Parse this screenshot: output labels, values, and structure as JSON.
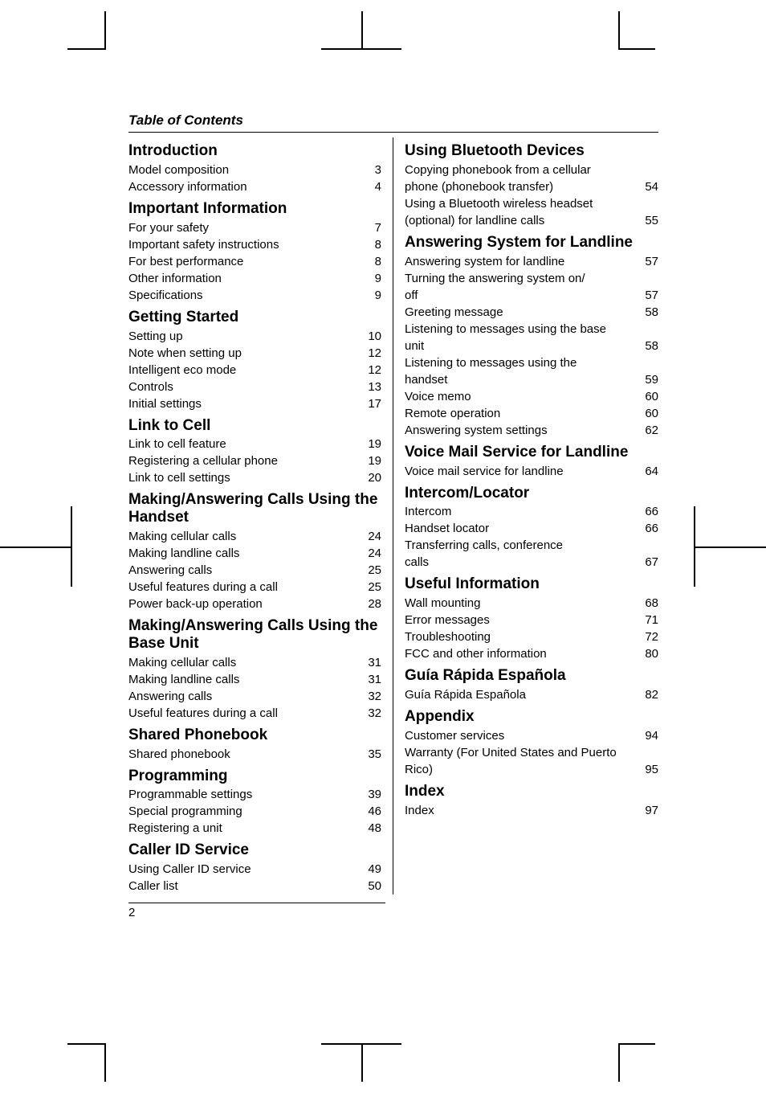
{
  "meta": {
    "title": "Table of Contents",
    "page_number": "2",
    "font_family": "Arial",
    "title_fontsize": 17,
    "section_fontsize": 19,
    "entry_fontsize": 15,
    "text_color": "#000000",
    "background_color": "#ffffff",
    "rule_color": "#000000"
  },
  "left": [
    {
      "type": "section",
      "text": "Introduction"
    },
    {
      "type": "entry",
      "label": "Model composition",
      "page": "3"
    },
    {
      "type": "entry",
      "label": "Accessory information",
      "page": "4"
    },
    {
      "type": "section",
      "text": "Important Information"
    },
    {
      "type": "entry",
      "label": "For your safety",
      "page": "7"
    },
    {
      "type": "entry",
      "label": "Important safety instructions",
      "page": "8"
    },
    {
      "type": "entry",
      "label": "For best performance",
      "page": "8"
    },
    {
      "type": "entry",
      "label": "Other information",
      "page": "9"
    },
    {
      "type": "entry",
      "label": "Specifications",
      "page": "9"
    },
    {
      "type": "section",
      "text": "Getting Started"
    },
    {
      "type": "entry",
      "label": "Setting up",
      "page": "10"
    },
    {
      "type": "entry",
      "label": "Note when setting up",
      "page": "12"
    },
    {
      "type": "entry",
      "label": "Intelligent eco mode",
      "page": "12"
    },
    {
      "type": "entry",
      "label": "Controls",
      "page": "13"
    },
    {
      "type": "entry",
      "label": "Initial settings",
      "page": "17"
    },
    {
      "type": "section",
      "text": "Link to Cell"
    },
    {
      "type": "entry",
      "label": "Link to cell feature",
      "page": "19"
    },
    {
      "type": "entry",
      "label": "Registering a cellular phone",
      "page": "19"
    },
    {
      "type": "entry",
      "label": "Link to cell settings",
      "page": "20"
    },
    {
      "type": "section",
      "text": "Making/Answering Calls Using the Handset"
    },
    {
      "type": "entry",
      "label": "Making cellular calls",
      "page": "24"
    },
    {
      "type": "entry",
      "label": "Making landline calls",
      "page": "24"
    },
    {
      "type": "entry",
      "label": "Answering calls",
      "page": "25"
    },
    {
      "type": "entry",
      "label": "Useful features during a call",
      "page": "25"
    },
    {
      "type": "entry",
      "label": "Power back-up operation",
      "page": "28"
    },
    {
      "type": "section",
      "text": "Making/Answering Calls Using the Base Unit"
    },
    {
      "type": "entry",
      "label": "Making cellular calls",
      "page": "31"
    },
    {
      "type": "entry",
      "label": "Making landline calls",
      "page": "31"
    },
    {
      "type": "entry",
      "label": "Answering calls",
      "page": "32"
    },
    {
      "type": "entry",
      "label": "Useful features during a call",
      "page": "32"
    },
    {
      "type": "section",
      "text": "Shared Phonebook"
    },
    {
      "type": "entry",
      "label": "Shared phonebook",
      "page": "35"
    },
    {
      "type": "section",
      "text": "Programming"
    },
    {
      "type": "entry",
      "label": "Programmable settings",
      "page": "39"
    },
    {
      "type": "entry",
      "label": "Special programming",
      "page": "46"
    },
    {
      "type": "entry",
      "label": "Registering a unit",
      "page": "48"
    },
    {
      "type": "section",
      "text": "Caller ID Service"
    },
    {
      "type": "entry",
      "label": "Using Caller ID service",
      "page": "49"
    },
    {
      "type": "entry",
      "label": "Caller list",
      "page": "50"
    }
  ],
  "right": [
    {
      "type": "section",
      "text": "Using Bluetooth Devices"
    },
    {
      "type": "wrap",
      "text": "Copying phonebook from a cellular"
    },
    {
      "type": "entry",
      "label": "phone (phonebook transfer)",
      "page": "54"
    },
    {
      "type": "wrap",
      "text": "Using a Bluetooth wireless headset"
    },
    {
      "type": "entry",
      "label": "(optional) for landline calls",
      "page": "55"
    },
    {
      "type": "section",
      "text": "Answering System for Landline"
    },
    {
      "type": "entry",
      "label": "Answering system for landline",
      "page": "57"
    },
    {
      "type": "wrap",
      "text": "Turning the answering system on/"
    },
    {
      "type": "entry",
      "label": "off",
      "page": "57"
    },
    {
      "type": "entry",
      "label": "Greeting message",
      "page": "58"
    },
    {
      "type": "wrap",
      "text": "Listening to messages using the base"
    },
    {
      "type": "entry",
      "label": "unit",
      "page": "58"
    },
    {
      "type": "wrap",
      "text": "Listening to messages using the"
    },
    {
      "type": "entry",
      "label": "handset",
      "page": "59"
    },
    {
      "type": "entry",
      "label": "Voice memo",
      "page": "60"
    },
    {
      "type": "entry",
      "label": "Remote operation",
      "page": "60"
    },
    {
      "type": "entry",
      "label": "Answering system settings",
      "page": "62"
    },
    {
      "type": "section",
      "text": "Voice Mail Service for Landline"
    },
    {
      "type": "entry",
      "label": "Voice mail service for landline",
      "page": "64"
    },
    {
      "type": "section",
      "text": "Intercom/Locator"
    },
    {
      "type": "entry",
      "label": "Intercom",
      "page": "66"
    },
    {
      "type": "entry",
      "label": "Handset locator",
      "page": "66"
    },
    {
      "type": "wrap",
      "text": "Transferring calls, conference"
    },
    {
      "type": "entry",
      "label": "calls",
      "page": "67"
    },
    {
      "type": "section",
      "text": "Useful Information"
    },
    {
      "type": "entry",
      "label": "Wall mounting",
      "page": "68"
    },
    {
      "type": "entry",
      "label": "Error messages",
      "page": "71"
    },
    {
      "type": "entry",
      "label": "Troubleshooting",
      "page": "72"
    },
    {
      "type": "entry",
      "label": "FCC and other information",
      "page": "80"
    },
    {
      "type": "section",
      "text": "Guía Rápida Española"
    },
    {
      "type": "entry",
      "label": "Guía Rápida Española",
      "page": "82"
    },
    {
      "type": "section",
      "text": "Appendix"
    },
    {
      "type": "entry",
      "label": "Customer services",
      "page": "94"
    },
    {
      "type": "wrap",
      "text": "Warranty (For United States and Puerto"
    },
    {
      "type": "entry",
      "label": "Rico)",
      "page": "95"
    },
    {
      "type": "section",
      "text": "Index"
    },
    {
      "type": "entry",
      "label": "Index",
      "page": "97"
    }
  ]
}
